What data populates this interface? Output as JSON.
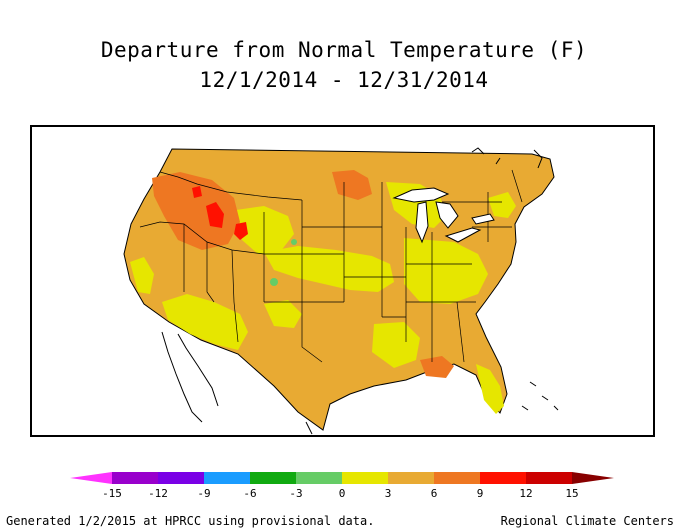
{
  "title": {
    "line1": "Departure from Normal Temperature (F)",
    "line2": "12/1/2014 - 12/31/2014"
  },
  "legend": {
    "ticks": [
      "-15",
      "-12",
      "-9",
      "-6",
      "-3",
      "0",
      "3",
      "6",
      "9",
      "12",
      "15"
    ],
    "bins": [
      {
        "color": "#9900cc"
      },
      {
        "color": "#7a00e6"
      },
      {
        "color": "#1a9cff"
      },
      {
        "color": "#11aa11"
      },
      {
        "color": "#66cc66"
      },
      {
        "color": "#e6e600"
      },
      {
        "color": "#e8aa33"
      },
      {
        "color": "#ee7722"
      },
      {
        "color": "#ff1100"
      },
      {
        "color": "#cc0000"
      }
    ],
    "low_arrow_color": "#ff33ff",
    "high_arrow_color": "#880000"
  },
  "footer": {
    "left": "Generated 1/2/2015 at HPRCC using provisional data.",
    "right": "Regional Climate Centers"
  }
}
